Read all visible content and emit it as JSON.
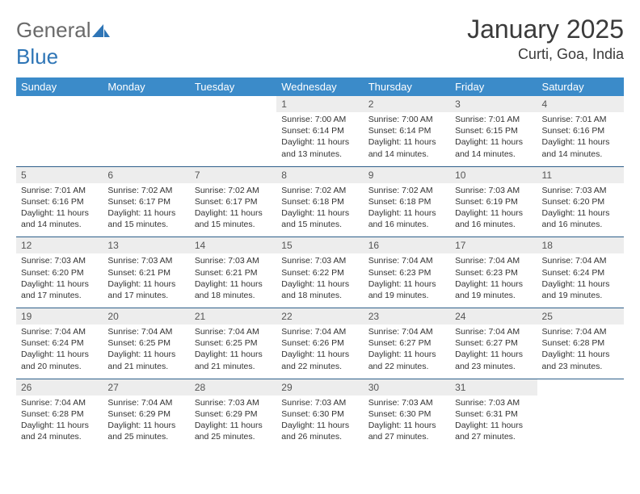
{
  "brand": {
    "name_a": "General",
    "name_b": "Blue"
  },
  "title": "January 2025",
  "location": "Curti, Goa, India",
  "colors": {
    "header_bg": "#3b8bc9",
    "header_fg": "#ffffff",
    "daynum_bg": "#ededed",
    "rule": "#2e5f8a",
    "brand_gray": "#6a6a6a",
    "brand_blue": "#2e75b6"
  },
  "day_headers": [
    "Sunday",
    "Monday",
    "Tuesday",
    "Wednesday",
    "Thursday",
    "Friday",
    "Saturday"
  ],
  "weeks": [
    {
      "nums": [
        "",
        "",
        "",
        "1",
        "2",
        "3",
        "4"
      ],
      "cells": [
        null,
        null,
        null,
        {
          "sunrise": "Sunrise: 7:00 AM",
          "sunset": "Sunset: 6:14 PM",
          "day1": "Daylight: 11 hours",
          "day2": "and 13 minutes."
        },
        {
          "sunrise": "Sunrise: 7:00 AM",
          "sunset": "Sunset: 6:14 PM",
          "day1": "Daylight: 11 hours",
          "day2": "and 14 minutes."
        },
        {
          "sunrise": "Sunrise: 7:01 AM",
          "sunset": "Sunset: 6:15 PM",
          "day1": "Daylight: 11 hours",
          "day2": "and 14 minutes."
        },
        {
          "sunrise": "Sunrise: 7:01 AM",
          "sunset": "Sunset: 6:16 PM",
          "day1": "Daylight: 11 hours",
          "day2": "and 14 minutes."
        }
      ]
    },
    {
      "nums": [
        "5",
        "6",
        "7",
        "8",
        "9",
        "10",
        "11"
      ],
      "cells": [
        {
          "sunrise": "Sunrise: 7:01 AM",
          "sunset": "Sunset: 6:16 PM",
          "day1": "Daylight: 11 hours",
          "day2": "and 14 minutes."
        },
        {
          "sunrise": "Sunrise: 7:02 AM",
          "sunset": "Sunset: 6:17 PM",
          "day1": "Daylight: 11 hours",
          "day2": "and 15 minutes."
        },
        {
          "sunrise": "Sunrise: 7:02 AM",
          "sunset": "Sunset: 6:17 PM",
          "day1": "Daylight: 11 hours",
          "day2": "and 15 minutes."
        },
        {
          "sunrise": "Sunrise: 7:02 AM",
          "sunset": "Sunset: 6:18 PM",
          "day1": "Daylight: 11 hours",
          "day2": "and 15 minutes."
        },
        {
          "sunrise": "Sunrise: 7:02 AM",
          "sunset": "Sunset: 6:18 PM",
          "day1": "Daylight: 11 hours",
          "day2": "and 16 minutes."
        },
        {
          "sunrise": "Sunrise: 7:03 AM",
          "sunset": "Sunset: 6:19 PM",
          "day1": "Daylight: 11 hours",
          "day2": "and 16 minutes."
        },
        {
          "sunrise": "Sunrise: 7:03 AM",
          "sunset": "Sunset: 6:20 PM",
          "day1": "Daylight: 11 hours",
          "day2": "and 16 minutes."
        }
      ]
    },
    {
      "nums": [
        "12",
        "13",
        "14",
        "15",
        "16",
        "17",
        "18"
      ],
      "cells": [
        {
          "sunrise": "Sunrise: 7:03 AM",
          "sunset": "Sunset: 6:20 PM",
          "day1": "Daylight: 11 hours",
          "day2": "and 17 minutes."
        },
        {
          "sunrise": "Sunrise: 7:03 AM",
          "sunset": "Sunset: 6:21 PM",
          "day1": "Daylight: 11 hours",
          "day2": "and 17 minutes."
        },
        {
          "sunrise": "Sunrise: 7:03 AM",
          "sunset": "Sunset: 6:21 PM",
          "day1": "Daylight: 11 hours",
          "day2": "and 18 minutes."
        },
        {
          "sunrise": "Sunrise: 7:03 AM",
          "sunset": "Sunset: 6:22 PM",
          "day1": "Daylight: 11 hours",
          "day2": "and 18 minutes."
        },
        {
          "sunrise": "Sunrise: 7:04 AM",
          "sunset": "Sunset: 6:23 PM",
          "day1": "Daylight: 11 hours",
          "day2": "and 19 minutes."
        },
        {
          "sunrise": "Sunrise: 7:04 AM",
          "sunset": "Sunset: 6:23 PM",
          "day1": "Daylight: 11 hours",
          "day2": "and 19 minutes."
        },
        {
          "sunrise": "Sunrise: 7:04 AM",
          "sunset": "Sunset: 6:24 PM",
          "day1": "Daylight: 11 hours",
          "day2": "and 19 minutes."
        }
      ]
    },
    {
      "nums": [
        "19",
        "20",
        "21",
        "22",
        "23",
        "24",
        "25"
      ],
      "cells": [
        {
          "sunrise": "Sunrise: 7:04 AM",
          "sunset": "Sunset: 6:24 PM",
          "day1": "Daylight: 11 hours",
          "day2": "and 20 minutes."
        },
        {
          "sunrise": "Sunrise: 7:04 AM",
          "sunset": "Sunset: 6:25 PM",
          "day1": "Daylight: 11 hours",
          "day2": "and 21 minutes."
        },
        {
          "sunrise": "Sunrise: 7:04 AM",
          "sunset": "Sunset: 6:25 PM",
          "day1": "Daylight: 11 hours",
          "day2": "and 21 minutes."
        },
        {
          "sunrise": "Sunrise: 7:04 AM",
          "sunset": "Sunset: 6:26 PM",
          "day1": "Daylight: 11 hours",
          "day2": "and 22 minutes."
        },
        {
          "sunrise": "Sunrise: 7:04 AM",
          "sunset": "Sunset: 6:27 PM",
          "day1": "Daylight: 11 hours",
          "day2": "and 22 minutes."
        },
        {
          "sunrise": "Sunrise: 7:04 AM",
          "sunset": "Sunset: 6:27 PM",
          "day1": "Daylight: 11 hours",
          "day2": "and 23 minutes."
        },
        {
          "sunrise": "Sunrise: 7:04 AM",
          "sunset": "Sunset: 6:28 PM",
          "day1": "Daylight: 11 hours",
          "day2": "and 23 minutes."
        }
      ]
    },
    {
      "nums": [
        "26",
        "27",
        "28",
        "29",
        "30",
        "31",
        ""
      ],
      "cells": [
        {
          "sunrise": "Sunrise: 7:04 AM",
          "sunset": "Sunset: 6:28 PM",
          "day1": "Daylight: 11 hours",
          "day2": "and 24 minutes."
        },
        {
          "sunrise": "Sunrise: 7:04 AM",
          "sunset": "Sunset: 6:29 PM",
          "day1": "Daylight: 11 hours",
          "day2": "and 25 minutes."
        },
        {
          "sunrise": "Sunrise: 7:03 AM",
          "sunset": "Sunset: 6:29 PM",
          "day1": "Daylight: 11 hours",
          "day2": "and 25 minutes."
        },
        {
          "sunrise": "Sunrise: 7:03 AM",
          "sunset": "Sunset: 6:30 PM",
          "day1": "Daylight: 11 hours",
          "day2": "and 26 minutes."
        },
        {
          "sunrise": "Sunrise: 7:03 AM",
          "sunset": "Sunset: 6:30 PM",
          "day1": "Daylight: 11 hours",
          "day2": "and 27 minutes."
        },
        {
          "sunrise": "Sunrise: 7:03 AM",
          "sunset": "Sunset: 6:31 PM",
          "day1": "Daylight: 11 hours",
          "day2": "and 27 minutes."
        },
        null
      ]
    }
  ]
}
